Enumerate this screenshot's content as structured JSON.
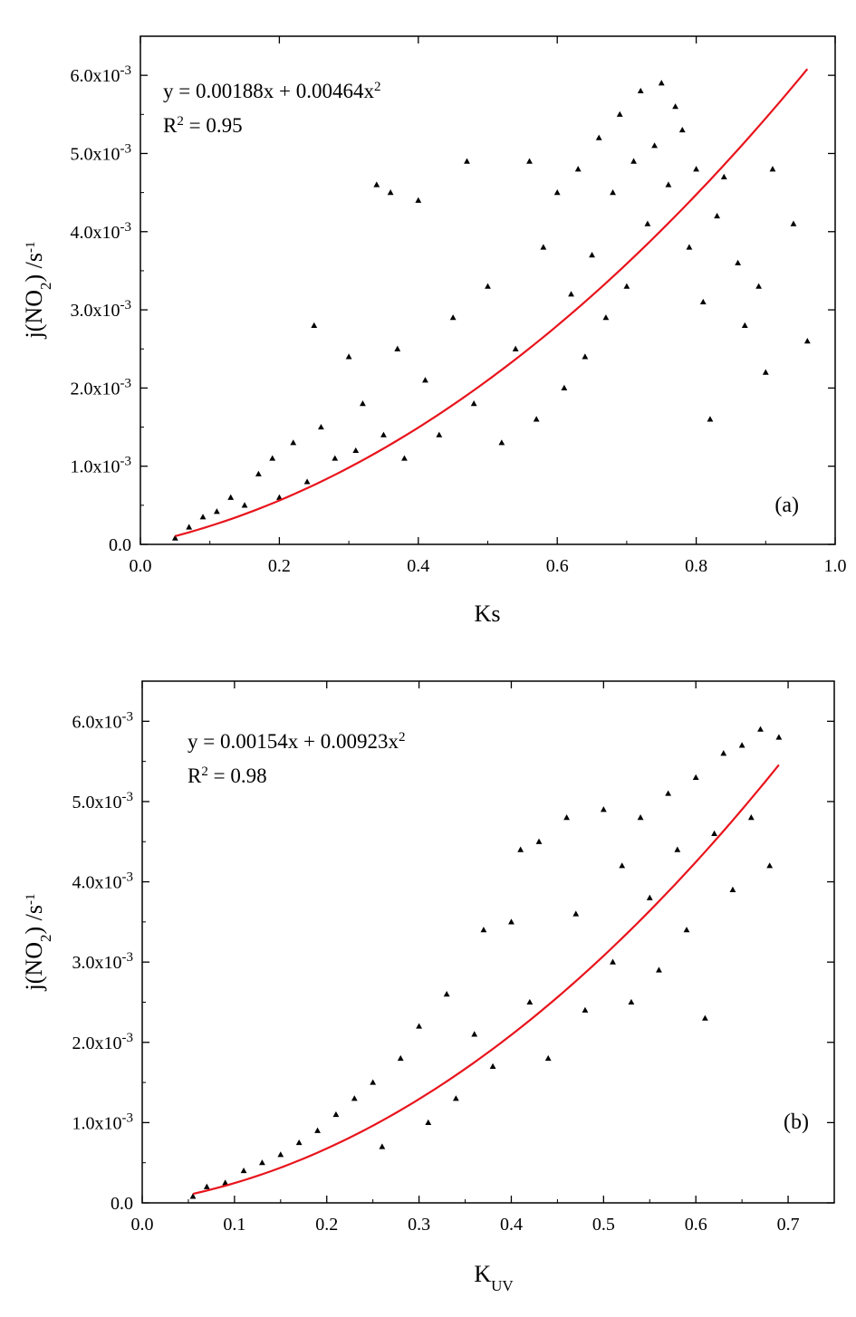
{
  "chart_data": [
    {
      "type": "scatter",
      "panel_label": "(a)",
      "xlabel": "Ks",
      "ylabel": "j(NO2) /s-1",
      "xlim": [
        0.0,
        1.0
      ],
      "ylim": [
        0.0,
        0.0065
      ],
      "xticks": [
        0.0,
        0.2,
        0.4,
        0.6,
        0.8,
        1.0
      ],
      "xtick_labels": [
        "0.0",
        "0.2",
        "0.4",
        "0.6",
        "0.8",
        "1.0"
      ],
      "yticks": [
        0.0,
        0.001,
        0.002,
        0.003,
        0.004,
        0.005,
        0.006
      ],
      "ytick_labels": [
        "0.0",
        "1.0x10-3",
        "2.0x10-3",
        "3.0x10-3",
        "4.0x10-3",
        "5.0x10-3",
        "6.0x10-3"
      ],
      "equation": "y =  0.00188x + 0.00464x2",
      "r_squared": "R2 = 0.95",
      "fit": {
        "a": 0.00188,
        "b": 0.00464,
        "x_range": [
          0.05,
          0.96
        ],
        "color": "#e8141c"
      },
      "series": [
        {
          "marker": "triangle",
          "color": "#000000",
          "points": [
            [
              0.05,
              8e-05
            ],
            [
              0.07,
              0.00022
            ],
            [
              0.09,
              0.00035
            ],
            [
              0.11,
              0.00042
            ],
            [
              0.13,
              0.0006
            ],
            [
              0.15,
              0.0005
            ],
            [
              0.17,
              0.0009
            ],
            [
              0.19,
              0.0011
            ],
            [
              0.2,
              0.0006
            ],
            [
              0.22,
              0.0013
            ],
            [
              0.24,
              0.0008
            ],
            [
              0.25,
              0.0028
            ],
            [
              0.26,
              0.0015
            ],
            [
              0.28,
              0.0011
            ],
            [
              0.3,
              0.0024
            ],
            [
              0.31,
              0.0012
            ],
            [
              0.32,
              0.0018
            ],
            [
              0.34,
              0.0046
            ],
            [
              0.35,
              0.0014
            ],
            [
              0.36,
              0.0045
            ],
            [
              0.37,
              0.0025
            ],
            [
              0.38,
              0.0011
            ],
            [
              0.4,
              0.0044
            ],
            [
              0.41,
              0.0021
            ],
            [
              0.43,
              0.0014
            ],
            [
              0.45,
              0.0029
            ],
            [
              0.47,
              0.0049
            ],
            [
              0.48,
              0.0018
            ],
            [
              0.5,
              0.0033
            ],
            [
              0.52,
              0.0013
            ],
            [
              0.54,
              0.0025
            ],
            [
              0.56,
              0.0049
            ],
            [
              0.57,
              0.0016
            ],
            [
              0.58,
              0.0038
            ],
            [
              0.6,
              0.0045
            ],
            [
              0.61,
              0.002
            ],
            [
              0.62,
              0.0032
            ],
            [
              0.63,
              0.0048
            ],
            [
              0.64,
              0.0024
            ],
            [
              0.65,
              0.0037
            ],
            [
              0.66,
              0.0052
            ],
            [
              0.67,
              0.0029
            ],
            [
              0.68,
              0.0045
            ],
            [
              0.69,
              0.0055
            ],
            [
              0.7,
              0.0033
            ],
            [
              0.71,
              0.0049
            ],
            [
              0.72,
              0.0058
            ],
            [
              0.73,
              0.0041
            ],
            [
              0.74,
              0.0051
            ],
            [
              0.75,
              0.0059
            ],
            [
              0.76,
              0.0046
            ],
            [
              0.77,
              0.0056
            ],
            [
              0.78,
              0.0053
            ],
            [
              0.79,
              0.0038
            ],
            [
              0.8,
              0.0048
            ],
            [
              0.81,
              0.0031
            ],
            [
              0.82,
              0.0016
            ],
            [
              0.83,
              0.0042
            ],
            [
              0.84,
              0.0047
            ],
            [
              0.86,
              0.0036
            ],
            [
              0.87,
              0.0028
            ],
            [
              0.89,
              0.0033
            ],
            [
              0.9,
              0.0022
            ],
            [
              0.91,
              0.0048
            ],
            [
              0.94,
              0.0041
            ],
            [
              0.96,
              0.0026
            ]
          ]
        }
      ]
    },
    {
      "type": "scatter",
      "panel_label": "(b)",
      "xlabel": "KUV",
      "ylabel": "j(NO2) /s-1",
      "xlim": [
        0.0,
        0.75
      ],
      "ylim": [
        0.0,
        0.0065
      ],
      "xticks": [
        0.0,
        0.1,
        0.2,
        0.3,
        0.4,
        0.5,
        0.6,
        0.7
      ],
      "xtick_labels": [
        "0.0",
        "0.1",
        "0.2",
        "0.3",
        "0.4",
        "0.5",
        "0.6",
        "0.7"
      ],
      "yticks": [
        0.0,
        0.001,
        0.002,
        0.003,
        0.004,
        0.005,
        0.006
      ],
      "ytick_labels": [
        "0.0",
        "1.0x10-3",
        "2.0x10-3",
        "3.0x10-3",
        "4.0x10-3",
        "5.0x10-3",
        "6.0x10-3"
      ],
      "equation": "y = 0.00154x + 0.00923x2",
      "r_squared": "R2 = 0.98",
      "fit": {
        "a": 0.00154,
        "b": 0.00923,
        "x_range": [
          0.055,
          0.69
        ],
        "color": "#e8141c"
      },
      "series": [
        {
          "marker": "triangle",
          "color": "#000000",
          "points": [
            [
              0.055,
              8e-05
            ],
            [
              0.07,
              0.0002
            ],
            [
              0.09,
              0.00025
            ],
            [
              0.11,
              0.0004
            ],
            [
              0.13,
              0.0005
            ],
            [
              0.15,
              0.0006
            ],
            [
              0.17,
              0.00075
            ],
            [
              0.19,
              0.0009
            ],
            [
              0.21,
              0.0011
            ],
            [
              0.23,
              0.0013
            ],
            [
              0.25,
              0.0015
            ],
            [
              0.26,
              0.0007
            ],
            [
              0.28,
              0.0018
            ],
            [
              0.3,
              0.0022
            ],
            [
              0.31,
              0.001
            ],
            [
              0.33,
              0.0026
            ],
            [
              0.34,
              0.0013
            ],
            [
              0.36,
              0.0021
            ],
            [
              0.37,
              0.0034
            ],
            [
              0.38,
              0.0017
            ],
            [
              0.4,
              0.0035
            ],
            [
              0.41,
              0.0044
            ],
            [
              0.42,
              0.0025
            ],
            [
              0.43,
              0.0045
            ],
            [
              0.44,
              0.0018
            ],
            [
              0.46,
              0.0048
            ],
            [
              0.47,
              0.0036
            ],
            [
              0.48,
              0.0024
            ],
            [
              0.5,
              0.0049
            ],
            [
              0.51,
              0.003
            ],
            [
              0.52,
              0.0042
            ],
            [
              0.53,
              0.0025
            ],
            [
              0.54,
              0.0048
            ],
            [
              0.55,
              0.0038
            ],
            [
              0.56,
              0.0029
            ],
            [
              0.57,
              0.0051
            ],
            [
              0.58,
              0.0044
            ],
            [
              0.59,
              0.0034
            ],
            [
              0.6,
              0.0053
            ],
            [
              0.61,
              0.0023
            ],
            [
              0.62,
              0.0046
            ],
            [
              0.63,
              0.0056
            ],
            [
              0.64,
              0.0039
            ],
            [
              0.65,
              0.0057
            ],
            [
              0.66,
              0.0048
            ],
            [
              0.67,
              0.0059
            ],
            [
              0.68,
              0.0042
            ],
            [
              0.69,
              0.0058
            ]
          ]
        }
      ]
    }
  ]
}
